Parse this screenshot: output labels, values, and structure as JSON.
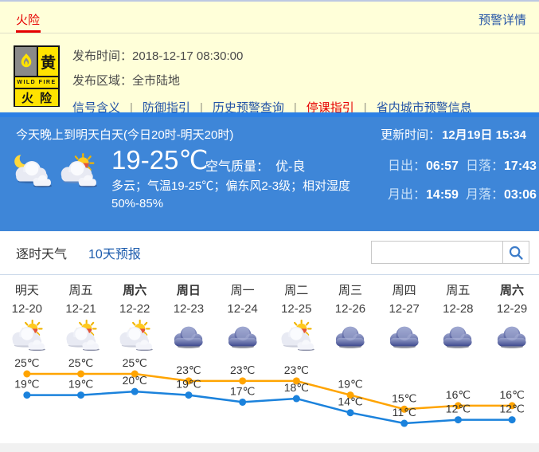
{
  "warning_bar": {
    "title": "火险",
    "detail_link": "预警详情"
  },
  "warning": {
    "icon": {
      "grade_char": "黄",
      "band_text": "WILD FIRE",
      "type_text": "火险"
    },
    "publish_time_label": "发布时间：",
    "publish_time_value": "2018-12-17 08:30:00",
    "publish_area_label": "发布区域：",
    "publish_area_value": "全市陆地",
    "links": [
      {
        "label": "信号含义",
        "style": "dotted"
      },
      {
        "label": "防御指引",
        "style": "dotted"
      },
      {
        "label": "历史预警查询",
        "style": "plain"
      },
      {
        "label": "停课指引",
        "style": "red"
      },
      {
        "label": "省内城市预警信息",
        "style": "plain"
      }
    ]
  },
  "current": {
    "period_title": "今天晚上到明天白天(今日20时-明天20时)",
    "update_label": "更新时间：",
    "update_value": "12月19日 15:34",
    "icons": [
      "night-cloudy",
      "day-cloudy"
    ],
    "temp_range": "19-25℃",
    "air_quality_label": "空气质量：",
    "air_quality_value": "优-良",
    "description": "多云；气温19-25℃；偏东风2-3级；相对湿度50%-85%",
    "astro": [
      {
        "label": "日出：",
        "value": "06:57"
      },
      {
        "label": "日落：",
        "value": "17:43"
      },
      {
        "label": "月出：",
        "value": "14:59"
      },
      {
        "label": "月落：",
        "value": "03:06"
      }
    ]
  },
  "tabs": {
    "items": [
      {
        "label": "逐时天气",
        "active": false
      },
      {
        "label": "10天预报",
        "active": true
      }
    ],
    "search_value": "",
    "search_placeholder": ""
  },
  "chart_data": {
    "type": "line",
    "title": "10天预报",
    "categories_day": [
      "明天",
      "周五",
      "周六",
      "周日",
      "周一",
      "周二",
      "周三",
      "周四",
      "周五",
      "周六"
    ],
    "bold_days": [
      false,
      false,
      true,
      true,
      false,
      false,
      false,
      false,
      false,
      true
    ],
    "categories_date": [
      "12-20",
      "12-21",
      "12-22",
      "12-23",
      "12-24",
      "12-25",
      "12-26",
      "12-27",
      "12-28",
      "12-29"
    ],
    "icons": [
      "partly-sunny",
      "partly-sunny",
      "partly-sunny",
      "cloudy",
      "cloudy",
      "partly-sunny",
      "cloudy",
      "cloudy",
      "cloudy",
      "cloudy"
    ],
    "series": [
      {
        "name": "high",
        "color": "#FFA400",
        "values": [
          25,
          25,
          25,
          23,
          23,
          23,
          19,
          15,
          16,
          16
        ]
      },
      {
        "name": "low",
        "color": "#1B82DC",
        "values": [
          19,
          19,
          20,
          19,
          17,
          18,
          14,
          11,
          12,
          12
        ]
      }
    ],
    "unit": "℃",
    "ylim": [
      11,
      25
    ],
    "legend": "off",
    "grid": "off"
  },
  "colors": {
    "warning_bg": "#FFFFD9",
    "panel_blue": "#3E86D8",
    "link_blue": "#2353A6",
    "alert_red": "#E60000",
    "badge_yellow": "#FFE300",
    "tab_active_blue": "#1D5CAD",
    "high_line": "#FFA400",
    "low_line": "#1B82DC"
  }
}
